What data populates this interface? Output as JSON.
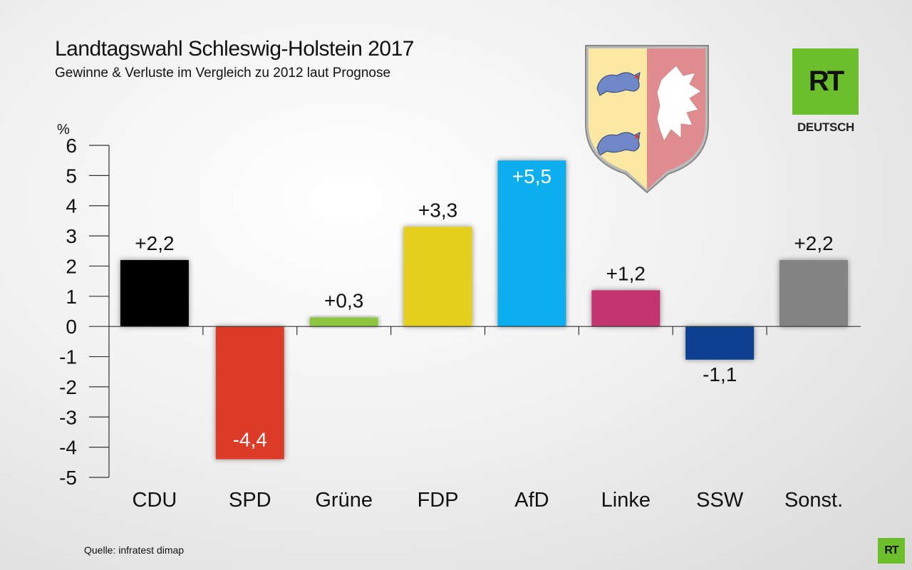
{
  "header": {
    "title": "Landtagswahl Schleswig-Holstein 2017",
    "subtitle": "Gewinne & Verluste im Vergleich zu 2012 laut Prognose"
  },
  "footer": {
    "source": "Quelle: infratest dimap"
  },
  "branding": {
    "logo_text": "RT",
    "logo_sub": "DEUTSCH",
    "logo_color": "#6cbe2a"
  },
  "chart_data": {
    "type": "bar",
    "title": "Landtagswahl Schleswig-Holstein 2017",
    "subtitle": "Gewinne & Verluste im Vergleich zu 2012 laut Prognose",
    "ylabel": "%",
    "xlabel": "",
    "ylim": [
      -5,
      6
    ],
    "yticks": [
      6,
      5,
      4,
      3,
      2,
      1,
      0,
      -1,
      -2,
      -3,
      -4,
      -5
    ],
    "ytick_labels": [
      "6",
      "5",
      "4",
      "3",
      "2",
      "1",
      "0",
      "-1",
      "-2",
      "-3",
      "-4",
      "-5"
    ],
    "grid": false,
    "categories": [
      "CDU",
      "SPD",
      "Grüne",
      "FDP",
      "AfD",
      "Linke",
      "SSW",
      "Sonst."
    ],
    "values": [
      2.2,
      -4.4,
      0.3,
      3.3,
      5.5,
      1.2,
      -1.1,
      2.2
    ],
    "data_labels": [
      "+2,2",
      "-4,4",
      "+0,3",
      "+3,3",
      "+5,5",
      "+1,2",
      "-1,1",
      "+2,2"
    ],
    "colors": [
      "#000000",
      "#dd3a2b",
      "#8cc63f",
      "#e3cf1e",
      "#11aeee",
      "#c23670",
      "#073f91",
      "#848484"
    ],
    "label_inside": [
      false,
      true,
      false,
      false,
      true,
      false,
      false,
      false
    ]
  }
}
